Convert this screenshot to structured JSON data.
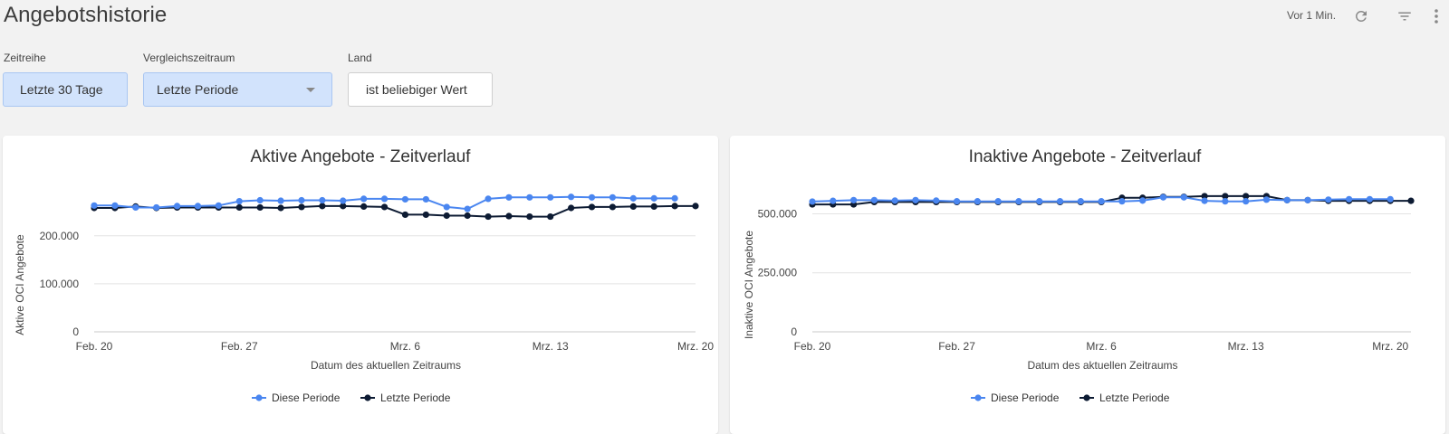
{
  "header": {
    "title": "Angebotshistorie",
    "updated": "Vor 1 Min.",
    "icons": [
      "refresh-icon",
      "filter-icon",
      "more-vert-icon"
    ]
  },
  "filters": {
    "zeitreihe": {
      "label": "Zeitreihe",
      "value": "Letzte 30 Tage"
    },
    "vergleich": {
      "label": "Vergleichszeitraum",
      "value": "Letzte Periode"
    },
    "land": {
      "label": "Land",
      "value": "ist beliebiger Wert"
    }
  },
  "colors": {
    "this_period": "#4a86f0",
    "last_period": "#0d1b33",
    "grid": "#e3e3e3"
  },
  "chart_data": [
    {
      "type": "line",
      "title": "Aktive Angebote - Zeitverlauf",
      "xlabel": "Datum des aktuellen Zeitraums",
      "ylabel": "Aktive OCI Angebote",
      "x_tick_labels": [
        "Feb. 20",
        "Feb. 27",
        "Mrz. 6",
        "Mrz. 13",
        "Mrz. 20"
      ],
      "x_tick_positions": [
        0,
        7,
        15,
        22,
        29
      ],
      "y_ticks": [
        0,
        100000,
        200000
      ],
      "y_tick_labels": [
        "0",
        "100.000",
        "200.000"
      ],
      "ylim": [
        0,
        290000
      ],
      "legend": "bottom",
      "series": [
        {
          "name": "Diese Periode",
          "x": [
            0,
            1,
            2,
            3,
            4,
            5,
            6,
            7,
            8,
            9,
            10,
            11,
            12,
            13,
            14,
            15,
            16,
            17,
            18,
            19,
            20,
            21,
            22,
            23,
            24,
            25,
            26,
            27,
            28
          ],
          "values": [
            263000,
            263000,
            259000,
            259000,
            262000,
            262000,
            263000,
            272000,
            274000,
            273000,
            274000,
            274000,
            273000,
            277000,
            277000,
            276000,
            276000,
            260000,
            256000,
            277000,
            280000,
            280000,
            280000,
            281000,
            280000,
            280000,
            278000,
            278000,
            278000
          ]
        },
        {
          "name": "Letzte Periode",
          "x": [
            0,
            1,
            2,
            3,
            4,
            5,
            6,
            7,
            8,
            9,
            10,
            11,
            12,
            13,
            14,
            15,
            16,
            17,
            18,
            19,
            20,
            21,
            22,
            23,
            24,
            25,
            26,
            27,
            28,
            29
          ],
          "values": [
            258000,
            258000,
            261000,
            258000,
            259000,
            259000,
            259000,
            259000,
            259000,
            258000,
            260000,
            262000,
            262000,
            261000,
            260000,
            244000,
            244000,
            242000,
            242000,
            240000,
            241000,
            240000,
            240000,
            258000,
            260000,
            260000,
            261000,
            261000,
            262000,
            262000
          ]
        }
      ]
    },
    {
      "type": "line",
      "title": "Inaktive Angebote - Zeitverlauf",
      "xlabel": "Datum des aktuellen Zeitraums",
      "ylabel": "Inaktive OCI Angebote",
      "x_tick_labels": [
        "Feb. 20",
        "Feb. 27",
        "Mrz. 6",
        "Mrz. 13",
        "Mrz. 20"
      ],
      "x_tick_positions": [
        0,
        7,
        14,
        21,
        28
      ],
      "y_ticks": [
        0,
        250000,
        500000
      ],
      "y_tick_labels": [
        "0",
        "250.000",
        "500.000"
      ],
      "ylim": [
        0,
        590000
      ],
      "legend": "bottom",
      "series": [
        {
          "name": "Diese Periode",
          "x": [
            0,
            1,
            2,
            3,
            4,
            5,
            6,
            7,
            8,
            9,
            10,
            11,
            12,
            13,
            14,
            15,
            16,
            17,
            18,
            19,
            20,
            21,
            22,
            23,
            24,
            25,
            26,
            27,
            28
          ],
          "values": [
            552000,
            555000,
            558000,
            558000,
            556000,
            558000,
            556000,
            553000,
            553000,
            553000,
            553000,
            553000,
            553000,
            553000,
            553000,
            553000,
            556000,
            570000,
            570000,
            555000,
            553000,
            553000,
            560000,
            558000,
            558000,
            560000,
            562000,
            562000,
            562000
          ]
        },
        {
          "name": "Letzte Periode",
          "x": [
            0,
            1,
            2,
            3,
            4,
            5,
            6,
            7,
            8,
            9,
            10,
            11,
            12,
            13,
            14,
            15,
            16,
            17,
            18,
            19,
            20,
            21,
            22,
            23,
            24,
            25,
            26,
            27,
            28,
            29
          ],
          "values": [
            540000,
            540000,
            540000,
            550000,
            550000,
            550000,
            550000,
            550000,
            550000,
            550000,
            550000,
            550000,
            550000,
            550000,
            550000,
            568000,
            568000,
            572000,
            572000,
            575000,
            575000,
            575000,
            575000,
            558000,
            558000,
            555000,
            555000,
            555000,
            555000,
            555000
          ]
        }
      ]
    }
  ]
}
